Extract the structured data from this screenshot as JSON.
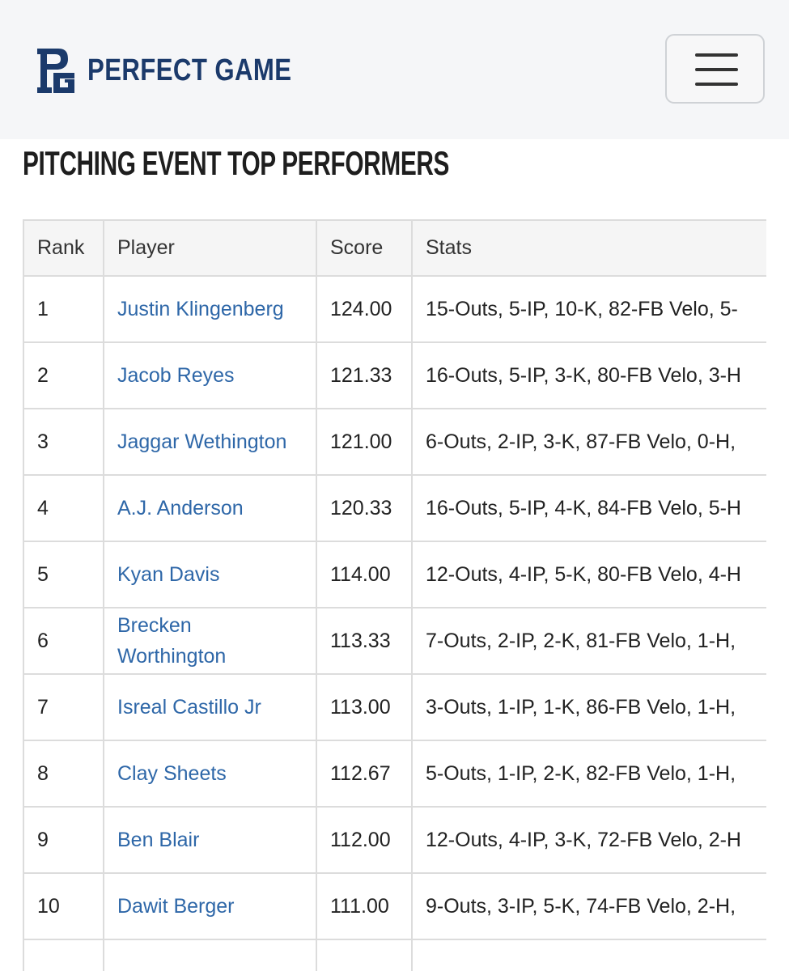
{
  "header": {
    "brand": "PERFECT GAME"
  },
  "heading": "PITCHING EVENT TOP PERFORMERS",
  "table": {
    "columns": [
      "Rank",
      "Player",
      "Score",
      "Stats"
    ],
    "rows": [
      [
        "1",
        "Justin Klingenberg",
        "124.00",
        "15-Outs, 5-IP, 10-K, 82-FB Velo, 5-"
      ],
      [
        "2",
        "Jacob Reyes",
        "121.33",
        "16-Outs, 5-IP, 3-K, 80-FB Velo, 3-H"
      ],
      [
        "3",
        "Jaggar Wethington",
        "121.00",
        "6-Outs, 2-IP, 3-K, 87-FB Velo, 0-H,"
      ],
      [
        "4",
        "A.J. Anderson",
        "120.33",
        "16-Outs, 5-IP, 4-K, 84-FB Velo, 5-H"
      ],
      [
        "5",
        "Kyan Davis",
        "114.00",
        "12-Outs, 4-IP, 5-K, 80-FB Velo, 4-H"
      ],
      [
        "6",
        "Brecken Worthington",
        "113.33",
        "7-Outs, 2-IP, 2-K, 81-FB Velo, 1-H,"
      ],
      [
        "7",
        "Isreal Castillo Jr",
        "113.00",
        "3-Outs, 1-IP, 1-K, 86-FB Velo, 1-H,"
      ],
      [
        "8",
        "Clay Sheets",
        "112.67",
        "5-Outs, 1-IP, 2-K, 82-FB Velo, 1-H,"
      ],
      [
        "9",
        "Ben Blair",
        "112.00",
        "12-Outs, 4-IP, 3-K, 72-FB Velo, 2-H"
      ],
      [
        "10",
        "Dawit Berger",
        "111.00",
        "9-Outs, 3-IP, 5-K, 74-FB Velo, 2-H,"
      ]
    ]
  }
}
